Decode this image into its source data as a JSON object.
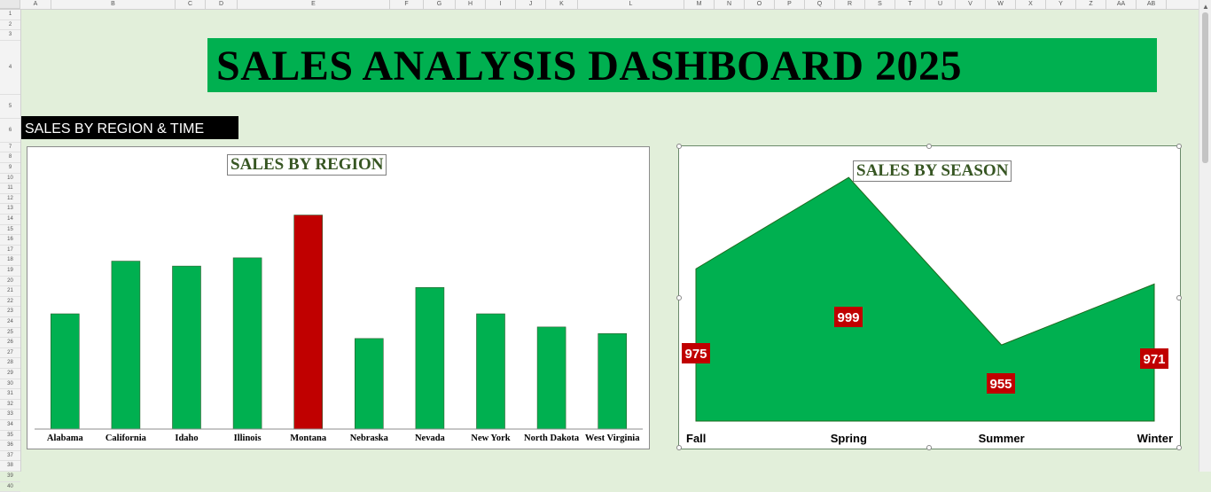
{
  "spreadsheet": {
    "columns": [
      "A",
      "B",
      "C",
      "D",
      "E",
      "F",
      "G",
      "H",
      "I",
      "J",
      "K",
      "L",
      "M",
      "N",
      "O",
      "P",
      "Q",
      "R",
      "S",
      "T",
      "U",
      "V",
      "W",
      "X",
      "Y",
      "Z",
      "AA",
      "AB"
    ],
    "rows": [
      "1",
      "2",
      "3",
      "4",
      "5",
      "6",
      "7",
      "8",
      "9",
      "10",
      "11",
      "12",
      "13",
      "14",
      "15",
      "16",
      "17",
      "18",
      "19",
      "20",
      "21",
      "22",
      "23",
      "24",
      "25",
      "26",
      "27",
      "28",
      "29",
      "30",
      "31",
      "32",
      "33",
      "34",
      "35",
      "36",
      "37",
      "38",
      "39",
      "40"
    ]
  },
  "dashboard": {
    "title": "SALES ANALYSIS DASHBOARD 2025",
    "section_label": "SALES BY REGION & TIME",
    "colors": {
      "banner": "#00b050",
      "bar": "#00b050",
      "highlight": "#c00000",
      "background": "#e2efda",
      "title_text": "#375623"
    }
  },
  "chart_data": [
    {
      "type": "bar",
      "title": "SALES BY REGION",
      "categories": [
        "Alabama",
        "California",
        "Idaho",
        "Illinois",
        "Montana",
        "Nebraska",
        "Nevada",
        "New York",
        "North Dakota",
        "West Virginia"
      ],
      "values": [
        970,
        1002,
        999,
        1004,
        1030,
        955,
        986,
        970,
        962,
        958
      ],
      "highlight": "Montana",
      "ylim": [
        900,
        1040
      ],
      "grid": false
    },
    {
      "type": "area",
      "title": "SALES BY SEASON",
      "categories": [
        "Fall",
        "Spring",
        "Summer",
        "Winter"
      ],
      "values": [
        975,
        999,
        955,
        971
      ],
      "data_labels": [
        "975",
        "999",
        "955",
        "971"
      ],
      "ylim": [
        935,
        1003
      ],
      "grid": false
    }
  ]
}
